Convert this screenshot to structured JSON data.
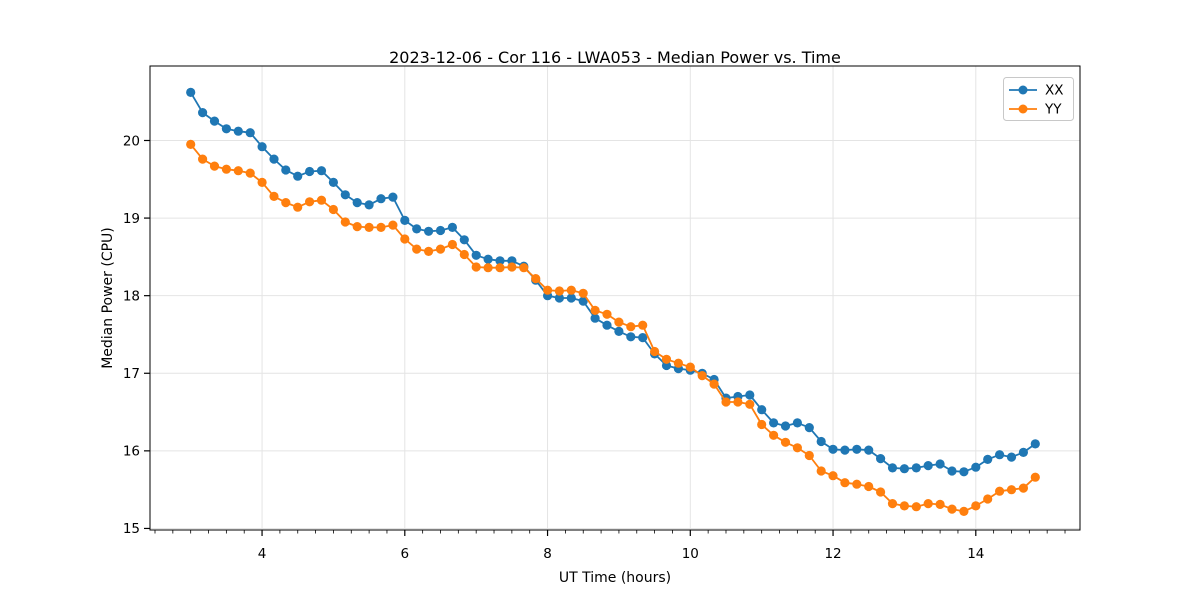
{
  "chart_data": {
    "type": "line",
    "title": "2023-12-06 - Cor 116 - LWA053 - Median Power vs. Time",
    "xlabel": "UT Time (hours)",
    "ylabel": "Median Power (CPU)",
    "xlim": [
      2.43,
      15.46
    ],
    "ylim": [
      14.98,
      20.96
    ],
    "x_ticks": [
      4,
      6,
      8,
      10,
      12,
      14
    ],
    "y_ticks": [
      15,
      16,
      17,
      18,
      19,
      20
    ],
    "x_minor_step": 0.25,
    "grid": true,
    "legend_position": "upper right",
    "x_start": 3.0,
    "x_step_hours": 0.1666667,
    "series": [
      {
        "name": "XX",
        "color": "#1f77b4",
        "values": [
          20.62,
          20.36,
          20.25,
          20.15,
          20.12,
          20.1,
          19.92,
          19.76,
          19.62,
          19.54,
          19.6,
          19.61,
          19.46,
          19.3,
          19.2,
          19.17,
          19.25,
          19.27,
          18.97,
          18.86,
          18.83,
          18.84,
          18.88,
          18.72,
          18.52,
          18.47,
          18.45,
          18.45,
          18.38,
          18.2,
          18.0,
          17.97,
          17.97,
          17.93,
          17.71,
          17.62,
          17.54,
          17.47,
          17.46,
          17.25,
          17.1,
          17.06,
          17.04,
          17.0,
          16.92,
          16.68,
          16.7,
          16.72,
          16.53,
          16.36,
          16.32,
          16.36,
          16.3,
          16.12,
          16.02,
          16.01,
          16.02,
          16.01,
          15.9,
          15.78,
          15.77,
          15.78,
          15.81,
          15.83,
          15.74,
          15.73,
          15.79,
          15.89,
          15.95,
          15.92,
          15.98,
          16.09
        ]
      },
      {
        "name": "YY",
        "color": "#ff7f0e",
        "values": [
          19.95,
          19.76,
          19.67,
          19.63,
          19.61,
          19.58,
          19.46,
          19.28,
          19.2,
          19.14,
          19.21,
          19.23,
          19.11,
          18.95,
          18.89,
          18.88,
          18.88,
          18.91,
          18.73,
          18.6,
          18.57,
          18.6,
          18.66,
          18.53,
          18.37,
          18.36,
          18.36,
          18.37,
          18.36,
          18.22,
          18.07,
          18.06,
          18.07,
          18.03,
          17.81,
          17.76,
          17.66,
          17.6,
          17.62,
          17.28,
          17.18,
          17.13,
          17.08,
          16.97,
          16.86,
          16.63,
          16.63,
          16.6,
          16.34,
          16.2,
          16.11,
          16.04,
          15.94,
          15.74,
          15.68,
          15.59,
          15.57,
          15.54,
          15.47,
          15.32,
          15.29,
          15.28,
          15.32,
          15.31,
          15.25,
          15.22,
          15.29,
          15.38,
          15.48,
          15.5,
          15.52,
          15.66
        ]
      }
    ]
  },
  "style_colors": {
    "grid": "#e4e4e4",
    "spine": "#000000",
    "background": "#ffffff",
    "legend_border": "#c8c8c8"
  }
}
